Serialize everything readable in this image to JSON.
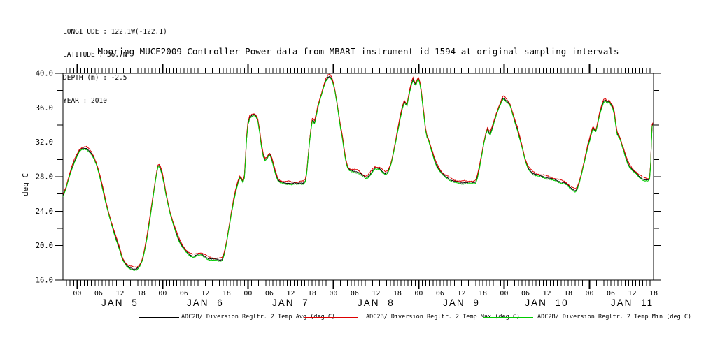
{
  "header": {
    "metadata_lines": [
      "LONGITUDE : 122.1W(-122.1)",
      "LATITUDE : 36.7N",
      "DEPTH (m) : -2.5",
      "YEAR : 2010"
    ]
  },
  "title": "Mooring MUCE2009 Controller–Power data from MBARI instrument id 1594 at original sampling intervals",
  "axes": {
    "y_tick_labels": [
      "40.0",
      "36.0",
      "32.0",
      "28.0",
      "24.0",
      "20.0",
      "16.0"
    ],
    "x_hour_labels": [
      "00",
      "06",
      "12",
      "18"
    ],
    "x_day_labels": [
      "JAN 5",
      "JAN 6",
      "JAN 7",
      "JAN 8",
      "JAN 9",
      "JAN 10",
      "JAN 11"
    ]
  },
  "legend": {
    "items": [
      {
        "label": "ADC2B/ Diversion Regltr. 2 Temp Avg (deg C)",
        "color": "#000000"
      },
      {
        "label": "ADC2B/ Diversion Regltr. 2 Temp Max (deg C)",
        "color": "#dd0000"
      },
      {
        "label": "ADC2B/ Diversion Regltr. 2 Temp Min (deg C)",
        "color": "#00cc00"
      }
    ]
  },
  "chart_data": {
    "type": "line",
    "title": "Mooring MUCE2009 Controller–Power data from MBARI instrument id 1594 at original sampling intervals",
    "xlabel": "",
    "ylabel": "deg C",
    "ylim": [
      16.0,
      40.0
    ],
    "ytick_major": 4.0,
    "ytick_minor": 2.0,
    "grid": false,
    "legend_position": "bottom",
    "x_axis": {
      "unit": "hours_from_plot_start",
      "start": "2010-01-04 ~20:00",
      "end": "2010-01-11 ~18:00",
      "hours_total": 166,
      "hour_tick_every": 1,
      "midnight_hours": [
        4,
        28,
        52,
        76,
        100,
        124,
        148
      ],
      "hour_label_offsets": [
        0,
        6,
        12,
        18
      ],
      "hour_labels": [
        "00",
        "06",
        "12",
        "18"
      ],
      "day_labels": [
        "JAN 5",
        "JAN 6",
        "JAN 7",
        "JAN 8",
        "JAN 9",
        "JAN 10",
        "JAN 11"
      ]
    },
    "series": [
      {
        "name": "ADC2B/ Diversion Regltr. 2 Temp Avg (deg C)",
        "color": "#000000",
        "offset_deg_c": 0
      },
      {
        "name": "ADC2B/ Diversion Regltr. 2 Temp Max (deg C)",
        "color": "#dd0000",
        "offset_deg_c": 0.17
      },
      {
        "name": "ADC2B/ Diversion Regltr. 2 Temp Min (deg C)",
        "color": "#00cc00",
        "offset_deg_c": -0.13
      }
    ],
    "avg_points_hours_degc": [
      [
        0,
        25.8
      ],
      [
        0.8,
        26.6
      ],
      [
        1.6,
        27.8
      ],
      [
        2.4,
        28.9
      ],
      [
        3.2,
        29.8
      ],
      [
        4,
        30.5
      ],
      [
        4.6,
        31
      ],
      [
        5.2,
        31.2
      ],
      [
        6,
        31.3
      ],
      [
        6.6,
        31.3
      ],
      [
        7.2,
        31.1
      ],
      [
        8,
        30.7
      ],
      [
        8.8,
        30.1
      ],
      [
        9.6,
        29.2
      ],
      [
        10.4,
        28
      ],
      [
        11.2,
        26.6
      ],
      [
        12,
        25.1
      ],
      [
        12.8,
        23.8
      ],
      [
        13.6,
        22.6
      ],
      [
        14.4,
        21.5
      ],
      [
        15.2,
        20.5
      ],
      [
        16,
        19.5
      ],
      [
        16.6,
        18.6
      ],
      [
        17.2,
        18.1
      ],
      [
        17.9,
        17.7
      ],
      [
        18.6,
        17.5
      ],
      [
        19.3,
        17.4
      ],
      [
        20,
        17.3
      ],
      [
        20.7,
        17.3
      ],
      [
        21.3,
        17.5
      ],
      [
        21.9,
        17.9
      ],
      [
        22.5,
        18.6
      ],
      [
        23.1,
        19.8
      ],
      [
        23.7,
        21.2
      ],
      [
        24.3,
        22.8
      ],
      [
        24.9,
        24.5
      ],
      [
        25.5,
        26.2
      ],
      [
        26,
        27.6
      ],
      [
        26.4,
        28.6
      ],
      [
        26.7,
        29.2
      ],
      [
        27,
        29.3
      ],
      [
        27.4,
        29
      ],
      [
        27.9,
        28.3
      ],
      [
        28.4,
        27.3
      ],
      [
        28.9,
        26.1
      ],
      [
        29.5,
        24.9
      ],
      [
        30.1,
        23.8
      ],
      [
        30.8,
        22.8
      ],
      [
        31.5,
        21.9
      ],
      [
        32.2,
        21.1
      ],
      [
        32.9,
        20.4
      ],
      [
        33.6,
        19.9
      ],
      [
        34.3,
        19.5
      ],
      [
        35.1,
        19.1
      ],
      [
        35.9,
        18.9
      ],
      [
        36.7,
        18.8
      ],
      [
        37.5,
        18.9
      ],
      [
        38.3,
        19
      ],
      [
        39,
        19
      ],
      [
        39.6,
        18.8
      ],
      [
        40.2,
        18.7
      ],
      [
        40.9,
        18.5
      ],
      [
        41.7,
        18.45
      ],
      [
        42.5,
        18.4
      ],
      [
        43.3,
        18.4
      ],
      [
        44,
        18.35
      ],
      [
        44.7,
        18.4
      ],
      [
        45.3,
        19
      ],
      [
        45.9,
        20.2
      ],
      [
        46.6,
        21.9
      ],
      [
        47.3,
        23.7
      ],
      [
        48,
        25.3
      ],
      [
        48.7,
        26.6
      ],
      [
        49.3,
        27.5
      ],
      [
        49.7,
        27.9
      ],
      [
        50.2,
        27.7
      ],
      [
        50.6,
        27.4
      ],
      [
        51,
        28
      ],
      [
        51.3,
        30
      ],
      [
        51.6,
        32.5
      ],
      [
        52,
        34.2
      ],
      [
        52.5,
        34.9
      ],
      [
        53.1,
        35.1
      ],
      [
        53.7,
        35.2
      ],
      [
        54.3,
        35
      ],
      [
        54.8,
        34.5
      ],
      [
        55.3,
        33.2
      ],
      [
        55.8,
        31.6
      ],
      [
        56.3,
        30.5
      ],
      [
        56.8,
        30
      ],
      [
        57.3,
        30.1
      ],
      [
        57.8,
        30.5
      ],
      [
        58.1,
        30.6
      ],
      [
        58.5,
        30.3
      ],
      [
        59,
        29.6
      ],
      [
        59.5,
        28.8
      ],
      [
        60,
        28.1
      ],
      [
        60.5,
        27.6
      ],
      [
        61.1,
        27.4
      ],
      [
        61.9,
        27.3
      ],
      [
        62.7,
        27.25
      ],
      [
        63.5,
        27.3
      ],
      [
        64.3,
        27.2
      ],
      [
        65.1,
        27.25
      ],
      [
        65.9,
        27.2
      ],
      [
        66.7,
        27.3
      ],
      [
        67.5,
        27.3
      ],
      [
        68.1,
        27.5
      ],
      [
        68.5,
        28.4
      ],
      [
        68.9,
        30.2
      ],
      [
        69.3,
        32
      ],
      [
        69.7,
        33.5
      ],
      [
        70.1,
        34.6
      ],
      [
        70.4,
        34.5
      ],
      [
        70.7,
        34.3
      ],
      [
        71.1,
        35
      ],
      [
        71.6,
        36
      ],
      [
        72.1,
        36.8
      ],
      [
        72.7,
        37.6
      ],
      [
        73.3,
        38.5
      ],
      [
        73.9,
        39.2
      ],
      [
        74.5,
        39.6
      ],
      [
        75,
        39.7
      ],
      [
        75.5,
        39.4
      ],
      [
        76,
        38.8
      ],
      [
        76.5,
        37.8
      ],
      [
        77,
        36.6
      ],
      [
        77.5,
        35.2
      ],
      [
        78,
        33.8
      ],
      [
        78.5,
        32.7
      ],
      [
        79,
        31.2
      ],
      [
        79.5,
        29.9
      ],
      [
        80,
        29.1
      ],
      [
        80.5,
        28.8
      ],
      [
        81.1,
        28.7
      ],
      [
        81.9,
        28.65
      ],
      [
        82.7,
        28.6
      ],
      [
        83.5,
        28.4
      ],
      [
        84.3,
        28.1
      ],
      [
        85.1,
        27.9
      ],
      [
        85.7,
        28
      ],
      [
        86.3,
        28.3
      ],
      [
        87,
        28.7
      ],
      [
        87.7,
        29
      ],
      [
        88.5,
        28.95
      ],
      [
        89.2,
        28.9
      ],
      [
        89.9,
        28.6
      ],
      [
        90.6,
        28.4
      ],
      [
        91.2,
        28.5
      ],
      [
        91.8,
        29
      ],
      [
        92.4,
        29.8
      ],
      [
        93,
        31
      ],
      [
        93.6,
        32.3
      ],
      [
        94.2,
        33.6
      ],
      [
        94.8,
        34.9
      ],
      [
        95.4,
        36
      ],
      [
        95.9,
        36.7
      ],
      [
        96.3,
        36.5
      ],
      [
        96.7,
        36.3
      ],
      [
        97.1,
        37.2
      ],
      [
        97.5,
        38
      ],
      [
        98,
        38.9
      ],
      [
        98.4,
        39.3
      ],
      [
        98.8,
        38.9
      ],
      [
        99.2,
        38.7
      ],
      [
        99.6,
        39.2
      ],
      [
        99.9,
        39.4
      ],
      [
        100.3,
        38.9
      ],
      [
        100.7,
        37.9
      ],
      [
        101.1,
        36.5
      ],
      [
        101.5,
        35
      ],
      [
        101.9,
        33.5
      ],
      [
        102.3,
        32.7
      ],
      [
        102.8,
        32.2
      ],
      [
        103.3,
        31.5
      ],
      [
        103.9,
        30.7
      ],
      [
        104.5,
        29.9
      ],
      [
        105.1,
        29.3
      ],
      [
        105.8,
        28.8
      ],
      [
        106.5,
        28.4
      ],
      [
        107.3,
        28.1
      ],
      [
        108.1,
        27.9
      ],
      [
        108.9,
        27.7
      ],
      [
        109.7,
        27.5
      ],
      [
        110.5,
        27.4
      ],
      [
        111.3,
        27.35
      ],
      [
        112.1,
        27.3
      ],
      [
        112.9,
        27.35
      ],
      [
        113.7,
        27.3
      ],
      [
        114.5,
        27.35
      ],
      [
        115.3,
        27.3
      ],
      [
        116,
        27.4
      ],
      [
        116.5,
        28
      ],
      [
        117.1,
        29.2
      ],
      [
        117.7,
        30.5
      ],
      [
        118.3,
        31.9
      ],
      [
        118.9,
        33
      ],
      [
        119.3,
        33.5
      ],
      [
        119.7,
        33.2
      ],
      [
        120.1,
        33
      ],
      [
        120.6,
        33.6
      ],
      [
        121.2,
        34.4
      ],
      [
        121.8,
        35.2
      ],
      [
        122.4,
        35.9
      ],
      [
        123,
        36.5
      ],
      [
        123.5,
        37
      ],
      [
        123.9,
        37.2
      ],
      [
        124.3,
        37
      ],
      [
        124.7,
        36.8
      ],
      [
        125.2,
        36.6
      ],
      [
        125.7,
        36.3
      ],
      [
        126.2,
        35.6
      ],
      [
        126.7,
        34.9
      ],
      [
        127.2,
        34.2
      ],
      [
        127.7,
        33.6
      ],
      [
        128.2,
        32.8
      ],
      [
        128.7,
        32
      ],
      [
        129.2,
        31.2
      ],
      [
        129.7,
        30.3
      ],
      [
        130.2,
        29.6
      ],
      [
        130.8,
        29
      ],
      [
        131.4,
        28.7
      ],
      [
        132.1,
        28.4
      ],
      [
        132.9,
        28.25
      ],
      [
        133.7,
        28.15
      ],
      [
        134.5,
        28.05
      ],
      [
        135.3,
        28
      ],
      [
        136.1,
        27.9
      ],
      [
        136.9,
        27.8
      ],
      [
        137.7,
        27.7
      ],
      [
        138.5,
        27.6
      ],
      [
        139.3,
        27.5
      ],
      [
        140.1,
        27.4
      ],
      [
        140.9,
        27.3
      ],
      [
        141.7,
        27.1
      ],
      [
        142.4,
        26.8
      ],
      [
        143.1,
        26.6
      ],
      [
        143.7,
        26.45
      ],
      [
        144.1,
        26.4
      ],
      [
        144.6,
        26.7
      ],
      [
        145.1,
        27.3
      ],
      [
        145.7,
        28.2
      ],
      [
        146.3,
        29.3
      ],
      [
        146.9,
        30.4
      ],
      [
        147.5,
        31.5
      ],
      [
        148.1,
        32.4
      ],
      [
        148.6,
        33.2
      ],
      [
        149,
        33.7
      ],
      [
        149.4,
        33.4
      ],
      [
        149.8,
        33.3
      ],
      [
        150.3,
        34.2
      ],
      [
        150.8,
        35.2
      ],
      [
        151.4,
        36.1
      ],
      [
        152,
        36.8
      ],
      [
        152.5,
        36.9
      ],
      [
        153,
        36.6
      ],
      [
        153.5,
        36.8
      ],
      [
        154,
        36.4
      ],
      [
        154.5,
        36.1
      ],
      [
        155,
        35.3
      ],
      [
        155.4,
        34
      ],
      [
        155.8,
        33
      ],
      [
        156.2,
        32.7
      ],
      [
        156.6,
        32.4
      ],
      [
        157.1,
        31.7
      ],
      [
        157.6,
        31.1
      ],
      [
        158.1,
        30.4
      ],
      [
        158.7,
        29.7
      ],
      [
        159.3,
        29.2
      ],
      [
        159.9,
        28.9
      ],
      [
        160.5,
        28.6
      ],
      [
        161.1,
        28.4
      ],
      [
        161.8,
        28.1
      ],
      [
        162.5,
        27.9
      ],
      [
        163.2,
        27.7
      ],
      [
        163.9,
        27.65
      ],
      [
        164.5,
        27.6
      ],
      [
        164.9,
        27.8
      ],
      [
        165.2,
        29.5
      ],
      [
        165.4,
        32
      ],
      [
        165.6,
        33.9
      ],
      [
        165.8,
        34.1
      ]
    ]
  }
}
